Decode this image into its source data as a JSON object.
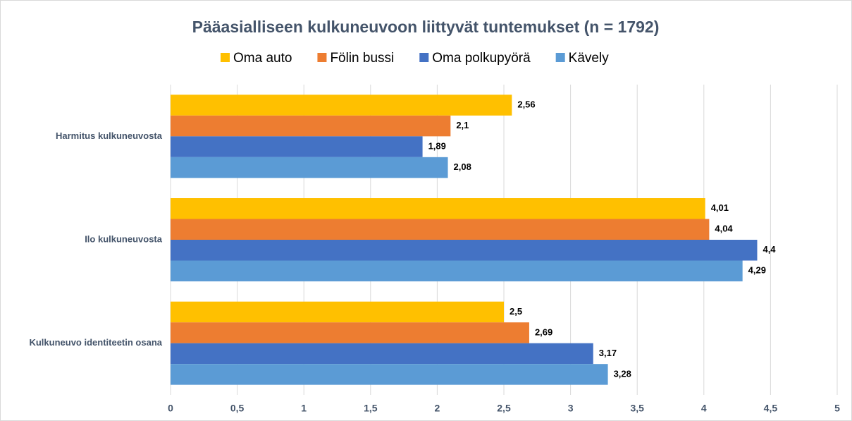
{
  "chart_data": {
    "type": "bar",
    "orientation": "horizontal",
    "title": "Pääasialliseen kulkuneuvoon liittyvät tuntemukset (n = 1792)",
    "categories": [
      "Harmitus kulkuneuvosta",
      "Ilo kulkuneuvosta",
      "Kulkuneuvo identiteetin osana"
    ],
    "series": [
      {
        "name": "Oma auto",
        "color": "#ffc000",
        "values": [
          2.56,
          4.01,
          2.5
        ],
        "value_labels": [
          "2,56",
          "4,01",
          "2,5"
        ]
      },
      {
        "name": "Fölin bussi",
        "color": "#ed7d31",
        "values": [
          2.1,
          4.04,
          2.69
        ],
        "value_labels": [
          "2,1",
          "4,04",
          "2,69"
        ]
      },
      {
        "name": "Oma polkupyörä",
        "color": "#4472c4",
        "values": [
          1.89,
          4.4,
          3.17
        ],
        "value_labels": [
          "1,89",
          "4,4",
          "3,17"
        ]
      },
      {
        "name": "Kävely",
        "color": "#5b9bd5",
        "values": [
          2.08,
          4.29,
          3.28
        ],
        "value_labels": [
          "2,08",
          "4,29",
          "3,28"
        ]
      }
    ],
    "xlim": [
      0,
      5
    ],
    "xticks": [
      0,
      {
        "value": 0.5,
        "label": "0,5"
      },
      1,
      {
        "value": 1.5,
        "label": "1,5"
      },
      2,
      {
        "value": 2.5,
        "label": "2,5"
      },
      3,
      {
        "value": 3.5,
        "label": "3,5"
      },
      4,
      {
        "value": 4.5,
        "label": "4,5"
      },
      5
    ],
    "grid": true,
    "legend": "top"
  }
}
